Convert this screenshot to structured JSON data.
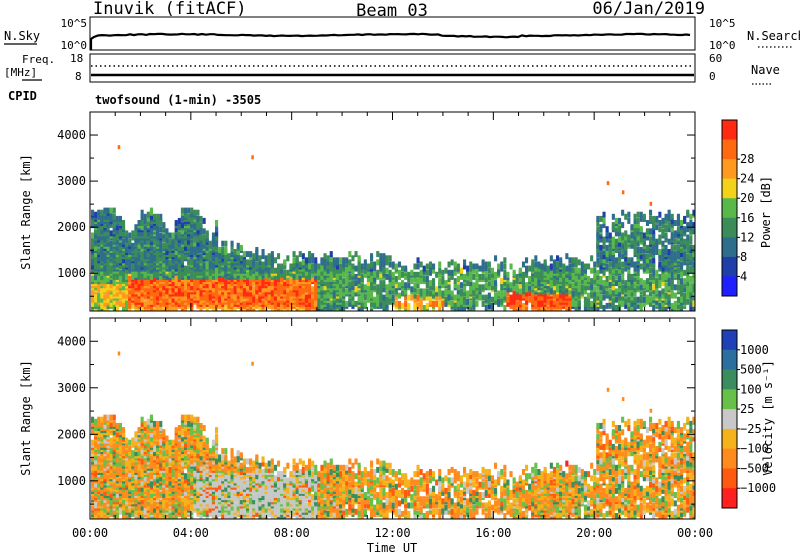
{
  "header": {
    "station": "Inuvik (fitACF)",
    "beam": "Beam 03",
    "date": "06/Jan/2019"
  },
  "nsky_panel": {
    "left_label": "N.Sky",
    "left_ticks": [
      "10^5",
      "10^0"
    ],
    "right_label": "N.Search",
    "right_ticks": [
      "10^5",
      "10^0"
    ]
  },
  "freq_panel": {
    "left_label_line1": "Freq.",
    "left_label_line2": "[MHz]",
    "left_ticks": [
      "18",
      "8"
    ],
    "right_label": "Nave",
    "right_ticks": [
      "60",
      "0"
    ],
    "cpid_label": "CPID"
  },
  "mode_text": "twofsound (1-min) -3505",
  "colors": {
    "power": [
      "#1f1fff",
      "#1e3fa8",
      "#2e6e8c",
      "#3c8c5a",
      "#58b84a",
      "#f2d21a",
      "#ff9a1e",
      "#ff6a10",
      "#ff2a10"
    ],
    "velocity": [
      "#2040b8",
      "#2b6ea0",
      "#3b8c5e",
      "#66c04a",
      "#c8c8c8",
      "#f5b21a",
      "#ff8a1e",
      "#ff5a10",
      "#ff2020"
    ]
  },
  "chart_data": [
    {
      "type": "heatmap",
      "panel": "power",
      "ylabel": "Slant Range [km]",
      "yticks": [
        "1000",
        "2000",
        "3000",
        "4000"
      ],
      "ylim": [
        180,
        4500
      ],
      "xlim": [
        "00:00",
        "24:00"
      ],
      "colorbar_label": "Power [dB]",
      "colorbar_ticks": [
        "4",
        "8",
        "12",
        "16",
        "20",
        "24",
        "28"
      ],
      "color_range": [
        0,
        30
      ]
    },
    {
      "type": "heatmap",
      "panel": "velocity",
      "ylabel": "Slant Range [km]",
      "yticks": [
        "1000",
        "2000",
        "3000",
        "4000"
      ],
      "ylim": [
        180,
        4500
      ],
      "xlim": [
        "00:00",
        "24:00"
      ],
      "xlabel": "Time UT",
      "xticks": [
        "00:00",
        "04:00",
        "08:00",
        "12:00",
        "16:00",
        "20:00",
        "00:00"
      ],
      "colorbar_label": "Velocity [m s⁻¹]",
      "colorbar_ticks": [
        "1000",
        "500",
        "100",
        "25",
        "−25",
        "−100",
        "−500",
        "−1000"
      ]
    }
  ]
}
